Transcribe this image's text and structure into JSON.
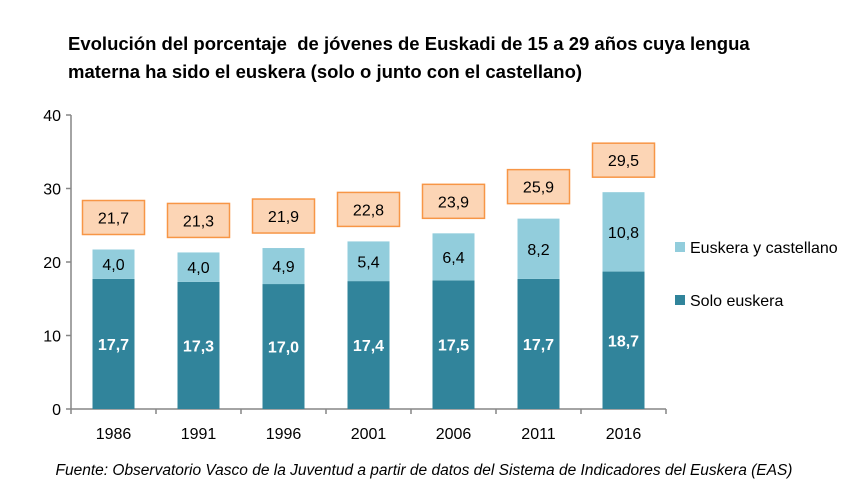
{
  "chart_data": {
    "type": "bar",
    "stacked": true,
    "title_lines": [
      "Evolución del porcentaje  de jóvenes de Euskadi de 15 a 29 años cuya lengua",
      "materna ha sido el euskera (solo o junto con el castellano)"
    ],
    "categories": [
      "1986",
      "1991",
      "1996",
      "2001",
      "2006",
      "2011",
      "2016"
    ],
    "series": [
      {
        "name": "Solo euskera",
        "color": "#31849B",
        "values": [
          17.7,
          17.3,
          17.0,
          17.4,
          17.5,
          17.7,
          18.7
        ],
        "labels": [
          "17,7",
          "17,3",
          "17,0",
          "17,4",
          "17,5",
          "17,7",
          "18,7"
        ]
      },
      {
        "name": "Euskera y castellano",
        "color": "#92CDDC",
        "values": [
          4.0,
          4.0,
          4.9,
          5.4,
          6.4,
          8.2,
          10.8
        ],
        "labels": [
          "4,0",
          "4,0",
          "4,9",
          "5,4",
          "6,4",
          "8,2",
          "10,8"
        ]
      }
    ],
    "totals": {
      "values": [
        21.7,
        21.3,
        21.9,
        22.8,
        23.9,
        25.9,
        29.5
      ],
      "labels": [
        "21,7",
        "21,3",
        "21,9",
        "22,8",
        "23,9",
        "25,9",
        "29,5"
      ],
      "fill": "#FCD5B5",
      "border": "#F79646"
    },
    "ylim": [
      0,
      40
    ],
    "yticks": [
      "0",
      "10",
      "20",
      "30",
      "40"
    ],
    "grid": false,
    "legend_placement": "right",
    "source": "Fuente: Observatorio Vasco de la Juventud a partir de datos del Sistema de Indicadores del Euskera (EAS)"
  }
}
